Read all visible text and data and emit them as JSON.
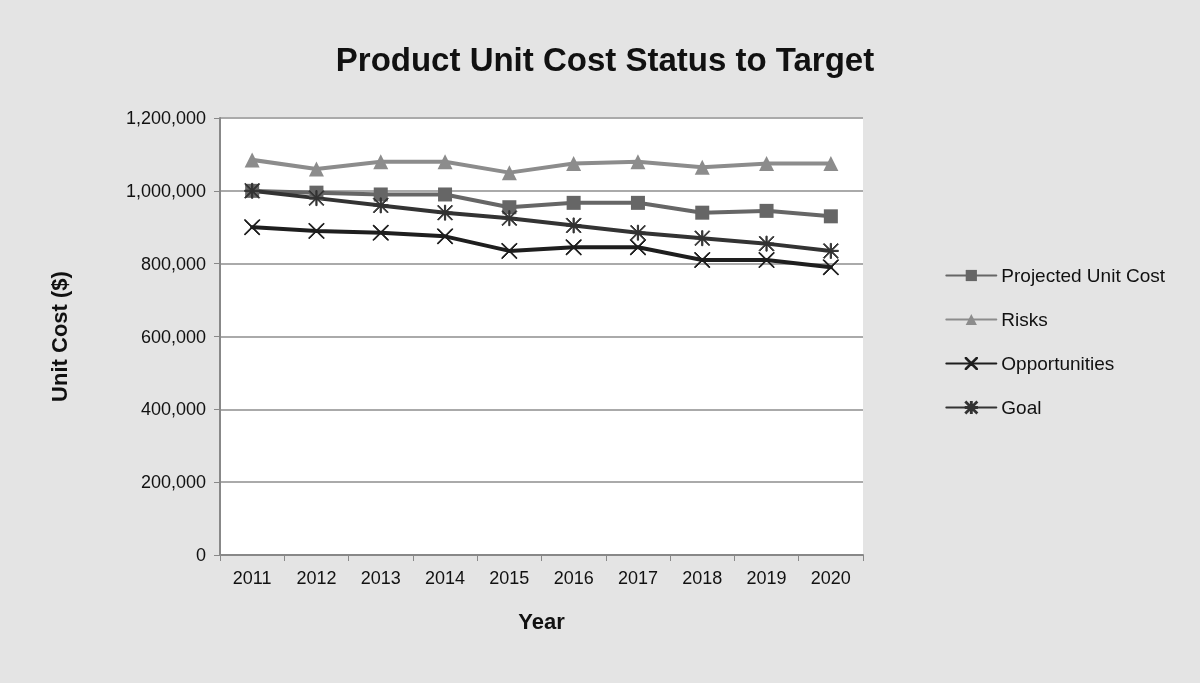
{
  "chart_data": {
    "type": "line",
    "title": "Product Unit Cost Status to Target",
    "xlabel": "Year",
    "ylabel": "Unit Cost ($)",
    "categories": [
      "2011",
      "2012",
      "2013",
      "2014",
      "2015",
      "2016",
      "2017",
      "2018",
      "2019",
      "2020"
    ],
    "series": [
      {
        "name": "Projected Unit Cost",
        "color": "#666666",
        "marker": "square",
        "values": [
          1000000,
          995000,
          990000,
          990000,
          955000,
          967000,
          967000,
          940000,
          945000,
          930000
        ]
      },
      {
        "name": "Risks",
        "color": "#8c8c8c",
        "marker": "triangle",
        "values": [
          1085000,
          1060000,
          1080000,
          1080000,
          1050000,
          1075000,
          1080000,
          1065000,
          1075000,
          1075000
        ]
      },
      {
        "name": "Opportunities",
        "color": "#1e1e1e",
        "marker": "cross",
        "values": [
          900000,
          890000,
          885000,
          875000,
          835000,
          845000,
          845000,
          810000,
          810000,
          790000
        ]
      },
      {
        "name": "Goal",
        "color": "#333333",
        "marker": "star",
        "values": [
          1000000,
          980000,
          960000,
          940000,
          925000,
          905000,
          885000,
          870000,
          855000,
          835000
        ]
      }
    ],
    "ylim": [
      0,
      1200000
    ],
    "yticks": [
      {
        "value": 0,
        "label": "0"
      },
      {
        "value": 200000,
        "label": "200,000"
      },
      {
        "value": 400000,
        "label": "400,000"
      },
      {
        "value": 600000,
        "label": "600,000"
      },
      {
        "value": 800000,
        "label": "800,000"
      },
      {
        "value": 1000000,
        "label": "1,000,000"
      },
      {
        "value": 1200000,
        "label": "1,200,000"
      }
    ],
    "grid": "y",
    "legend": "right"
  }
}
